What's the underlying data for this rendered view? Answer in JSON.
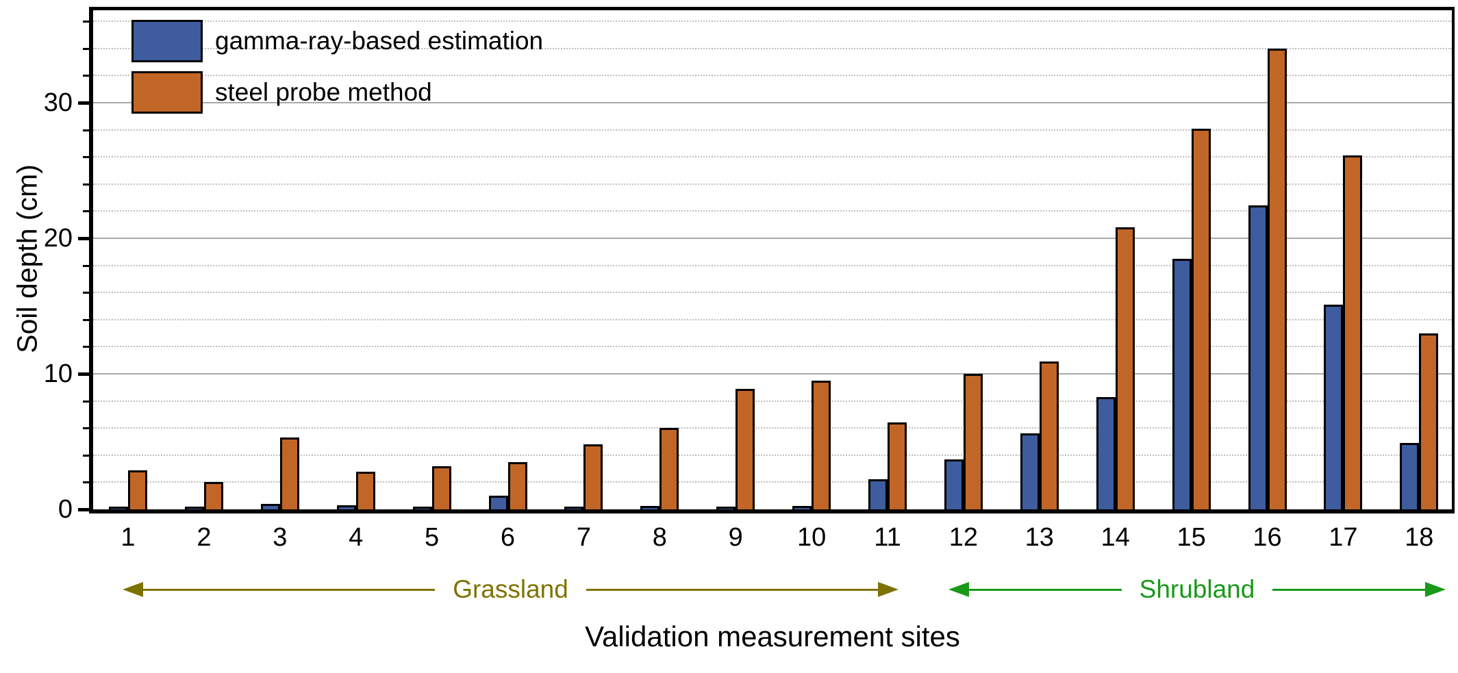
{
  "chart_data": {
    "type": "bar",
    "title": "",
    "xlabel": "Validation measurement sites",
    "ylabel": "Soil depth (cm)",
    "categories": [
      "1",
      "2",
      "3",
      "4",
      "5",
      "6",
      "7",
      "8",
      "9",
      "10",
      "11",
      "12",
      "13",
      "14",
      "15",
      "16",
      "17",
      "18"
    ],
    "series": [
      {
        "name": "gamma-ray-based estimation",
        "color": "#3E5C9E",
        "values": [
          0.1,
          0.1,
          0.4,
          0.3,
          0.2,
          1.0,
          0.2,
          0.25,
          0.15,
          0.25,
          2.2,
          3.7,
          5.6,
          8.3,
          18.5,
          22.4,
          15.1,
          4.9
        ]
      },
      {
        "name": "steel probe method",
        "color": "#C26628",
        "values": [
          2.9,
          2.0,
          5.3,
          2.8,
          3.2,
          3.5,
          4.8,
          6.0,
          8.9,
          9.5,
          6.4,
          10.0,
          10.9,
          20.8,
          28.1,
          34.0,
          26.1,
          13.0
        ]
      }
    ],
    "ylim": [
      0,
      36.8
    ],
    "yticks": [
      0,
      10,
      20,
      30
    ],
    "minor_tick_step": 2,
    "grid": "horizontal, solid at 10/20/30, dotted every 2",
    "legend_position": "top-left inside plot",
    "groups": [
      {
        "label": "Grassland",
        "from_site": "1",
        "to_site": "11",
        "color": "#7E7300"
      },
      {
        "label": "Shrubland",
        "from_site": "12",
        "to_site": "18",
        "color": "#189A18"
      }
    ]
  }
}
